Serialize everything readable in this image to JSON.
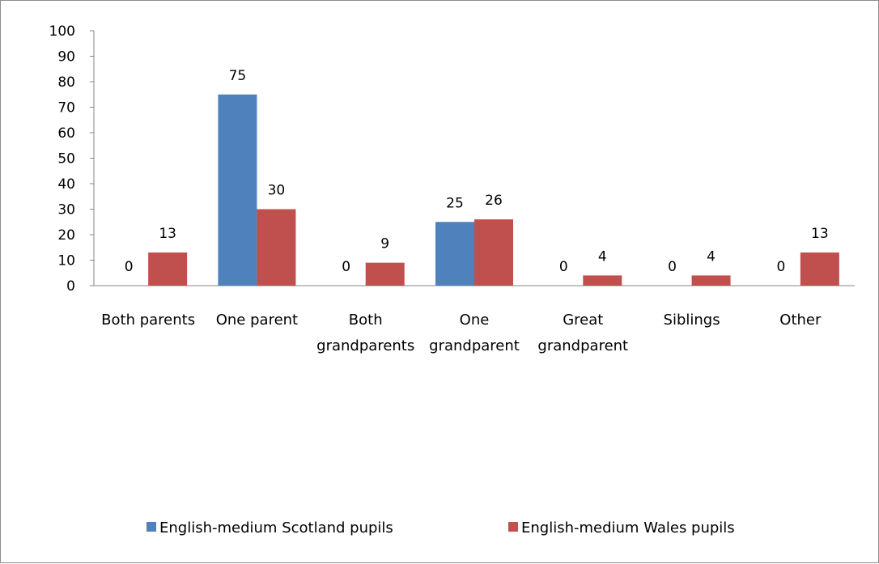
{
  "chart_data": {
    "type": "bar",
    "categories": [
      [
        "Both parents"
      ],
      [
        "One parent"
      ],
      [
        "Both",
        "grandparents"
      ],
      [
        "One",
        "grandparent"
      ],
      [
        "Great",
        "grandparent"
      ],
      [
        "Siblings"
      ],
      [
        "Other"
      ]
    ],
    "series": [
      {
        "name": "English-medium Scotland pupils",
        "color": "#4F81BD",
        "values": [
          0,
          75,
          0,
          25,
          0,
          0,
          0
        ]
      },
      {
        "name": "English-medium Wales pupils",
        "color": "#C0504D",
        "values": [
          13,
          30,
          9,
          26,
          4,
          4,
          13
        ]
      }
    ],
    "ylim": [
      0,
      100
    ],
    "yticks": [
      0,
      10,
      20,
      30,
      40,
      50,
      60,
      70,
      80,
      90,
      100
    ],
    "grid": false,
    "legend": "bottom"
  }
}
